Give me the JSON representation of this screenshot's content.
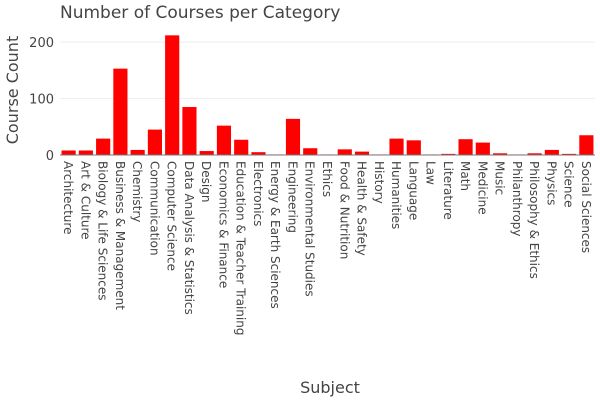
{
  "chart_data": {
    "type": "bar",
    "title": "Number of Courses per Category",
    "xlabel": "Subject",
    "ylabel": "Course Count",
    "ylim": [
      0,
      225
    ],
    "yticks": [
      0,
      100,
      200
    ],
    "grid": true,
    "legend": "none",
    "bar_color": "#ff0000",
    "categories": [
      "Architecture",
      "Art & Culture",
      "Biology & Life Sciences",
      "Business & Management",
      "Chemistry",
      "Communication",
      "Computer Science",
      "Data Analysis & Statistics",
      "Design",
      "Economics & Finance",
      "Education & Teacher Training",
      "Electronics",
      "Energy & Earth Sciences",
      "Engineering",
      "Environmental Studies",
      "Ethics",
      "Food & Nutrition",
      "Health & Safety",
      "History",
      "Humanities",
      "Language",
      "Law",
      "Literature",
      "Math",
      "Medicine",
      "Music",
      "Philanthropy",
      "Philosophy & Ethics",
      "Physics",
      "Science",
      "Social Sciences"
    ],
    "values": [
      8,
      8,
      29,
      153,
      9,
      45,
      212,
      85,
      7,
      52,
      27,
      5,
      1,
      64,
      12,
      1,
      10,
      6,
      1,
      29,
      26,
      1,
      2,
      28,
      22,
      3,
      1,
      3,
      9,
      2,
      35
    ]
  }
}
